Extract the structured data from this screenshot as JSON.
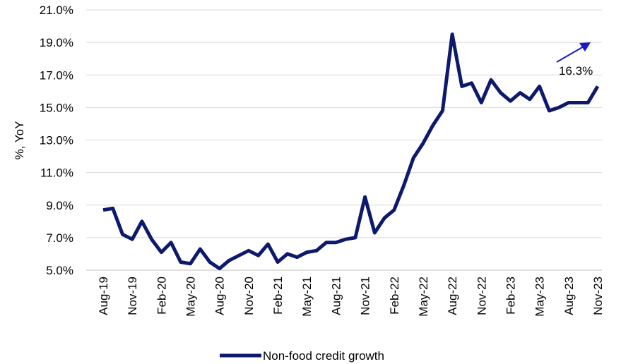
{
  "chart_data": {
    "type": "line",
    "ylabel": "%, YoY",
    "xlabel": "",
    "ylim": [
      5.0,
      21.0
    ],
    "yticks": [
      "5.0%",
      "7.0%",
      "9.0%",
      "11.0%",
      "13.0%",
      "15.0%",
      "17.0%",
      "19.0%",
      "21.0%"
    ],
    "ytick_values": [
      5,
      7,
      9,
      11,
      13,
      15,
      17,
      19,
      21
    ],
    "xtick_labels": [
      "Aug-19",
      "Nov-19",
      "Feb-20",
      "May-20",
      "Aug-20",
      "Nov-20",
      "Feb-21",
      "May-21",
      "Aug-21",
      "Nov-21",
      "Feb-22",
      "May-22",
      "Aug-22",
      "Nov-22",
      "Feb-23",
      "May-23",
      "Aug-23",
      "Nov-23"
    ],
    "grid": "horizontal",
    "legend_position": "bottom",
    "color": "#0d1a6b",
    "annotation": {
      "text": "16.3%",
      "arrow_color": "#1818cc"
    },
    "series": [
      {
        "name": "Non-food credit growth",
        "x": [
          "Aug-19",
          "Sep-19",
          "Oct-19",
          "Nov-19",
          "Dec-19",
          "Jan-20",
          "Feb-20",
          "Mar-20",
          "Apr-20",
          "May-20",
          "Jun-20",
          "Jul-20",
          "Aug-20",
          "Sep-20",
          "Oct-20",
          "Nov-20",
          "Dec-20",
          "Jan-21",
          "Feb-21",
          "Mar-21",
          "Apr-21",
          "May-21",
          "Jun-21",
          "Jul-21",
          "Aug-21",
          "Sep-21",
          "Oct-21",
          "Nov-21",
          "Dec-21",
          "Jan-22",
          "Feb-22",
          "Mar-22",
          "Apr-22",
          "May-22",
          "Jun-22",
          "Jul-22",
          "Aug-22",
          "Sep-22",
          "Oct-22",
          "Nov-22",
          "Dec-22",
          "Jan-23",
          "Feb-23",
          "Mar-23",
          "Apr-23",
          "May-23",
          "Jun-23",
          "Jul-23",
          "Aug-23",
          "Sep-23",
          "Oct-23",
          "Nov-23"
        ],
        "values": [
          8.7,
          8.8,
          7.2,
          6.9,
          8.0,
          6.9,
          6.1,
          6.7,
          5.5,
          5.4,
          6.3,
          5.5,
          5.1,
          5.6,
          5.9,
          6.2,
          5.9,
          6.6,
          5.5,
          6.0,
          5.8,
          6.1,
          6.2,
          6.7,
          6.7,
          6.9,
          7.0,
          9.5,
          7.3,
          8.2,
          8.7,
          10.2,
          11.9,
          12.8,
          13.9,
          14.8,
          19.5,
          16.3,
          16.5,
          15.3,
          16.7,
          15.9,
          15.4,
          15.9,
          15.5,
          16.3,
          14.8,
          15.0,
          15.3,
          15.3,
          15.3,
          16.3
        ]
      }
    ]
  }
}
